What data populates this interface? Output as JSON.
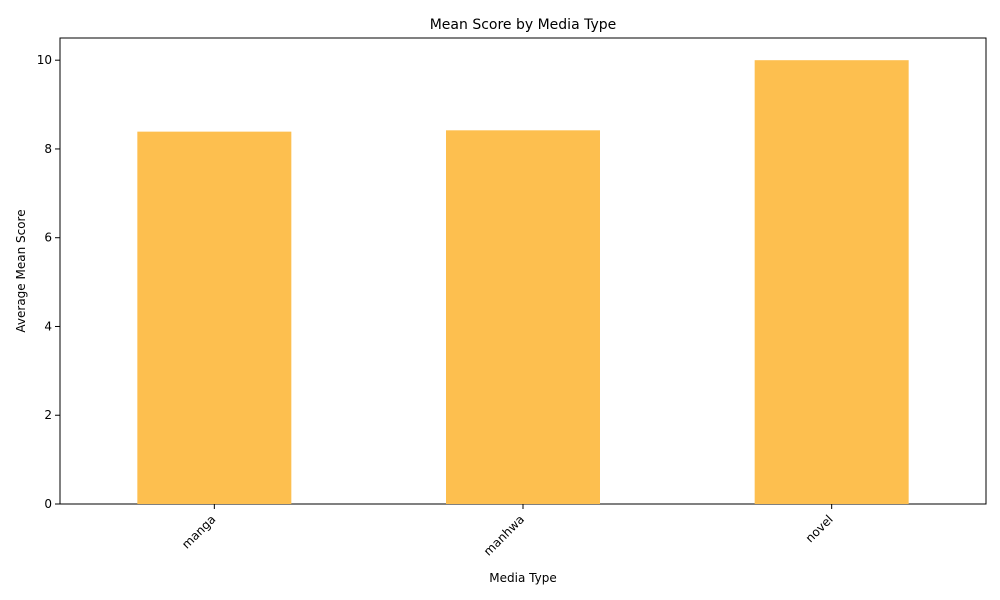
{
  "chart_data": {
    "type": "bar",
    "title": "Mean Score by Media Type",
    "xlabel": "Media Type",
    "ylabel": "Average Mean Score",
    "categories": [
      "manga",
      "manhwa",
      "novel"
    ],
    "values": [
      8.39,
      8.42,
      10.0
    ],
    "ylim": [
      0,
      10.5
    ],
    "yticks": [
      "0",
      "2",
      "4",
      "6",
      "8",
      "10"
    ],
    "bar_color": "#fdbf4f",
    "grid": false,
    "legend": "none"
  }
}
